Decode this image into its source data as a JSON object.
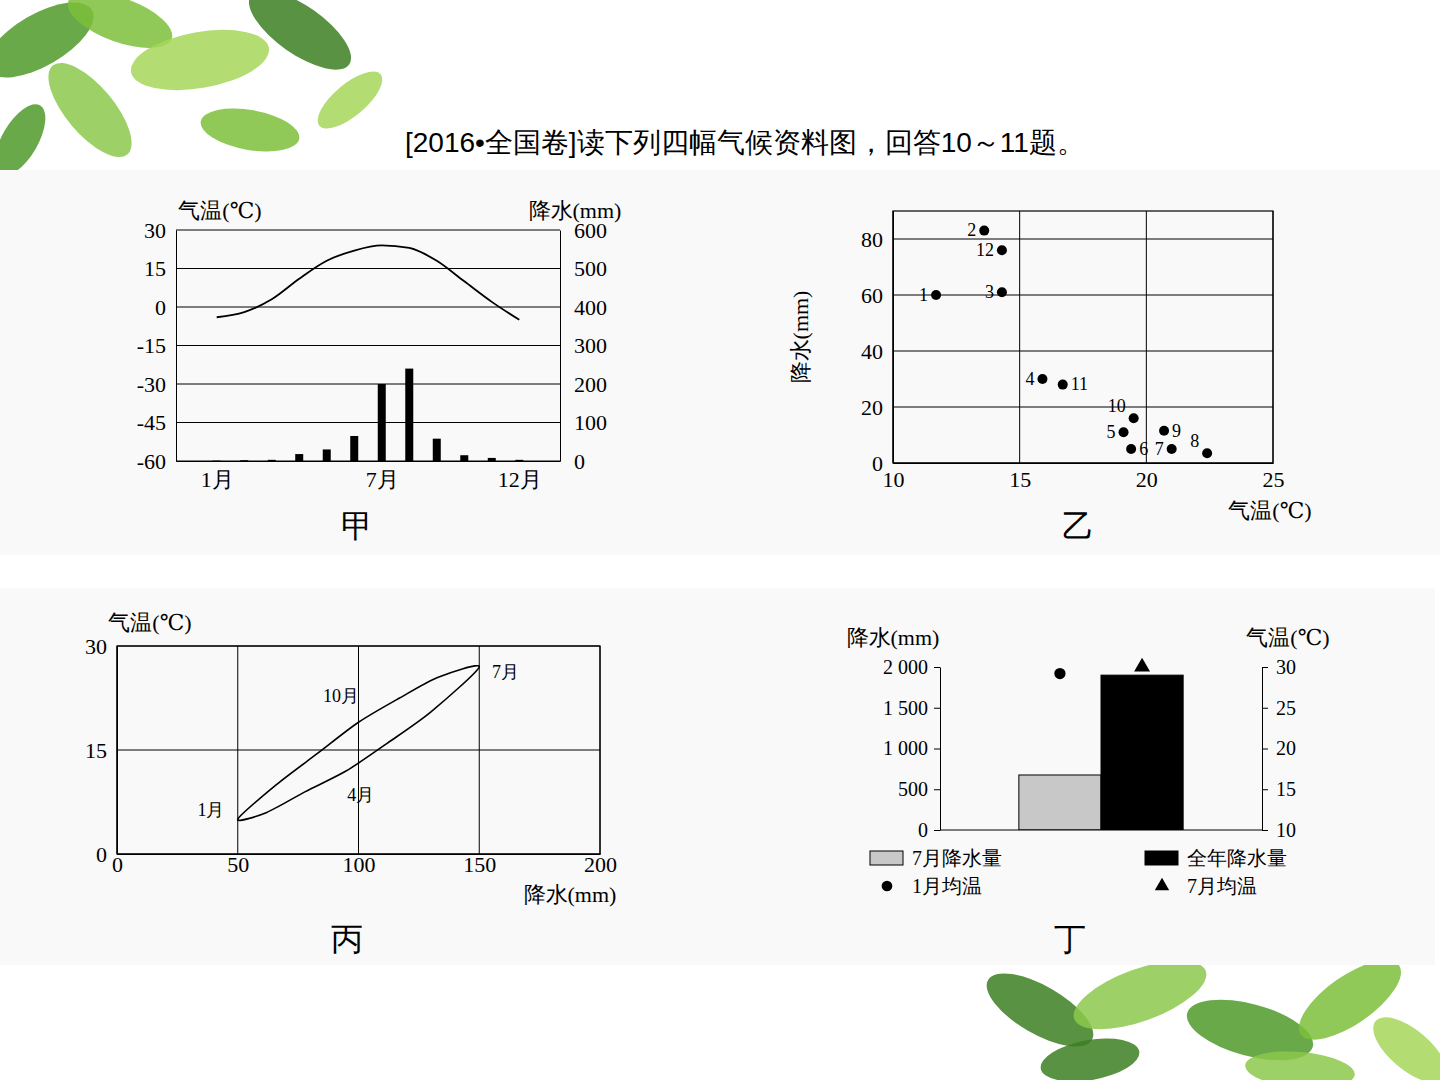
{
  "header": {
    "title": "[2016•全国卷]读下列四幅气候资料图，回答10～11题。"
  },
  "chart_data": [
    {
      "type": "bar_line",
      "caption": "甲",
      "categories": [
        "1月",
        null,
        null,
        null,
        null,
        null,
        "7月",
        null,
        null,
        null,
        null,
        "12月"
      ],
      "ylabel": "气温(℃)",
      "y2label": "降水(mm)",
      "ylim": [
        -60,
        30
      ],
      "yticks": [
        -60,
        -45,
        -30,
        -15,
        0,
        15,
        30
      ],
      "y2lim": [
        0,
        600
      ],
      "y2ticks": [
        0,
        100,
        200,
        300,
        400,
        500,
        600
      ],
      "grid": true,
      "series": [
        {
          "type": "line",
          "color": "#000000",
          "values": [
            -4,
            -2,
            3,
            11,
            18,
            22,
            24,
            23,
            18,
            10,
            2,
            -5
          ]
        },
        {
          "type": "bar",
          "axis": "y2",
          "color": "#000000",
          "values": [
            1,
            2,
            3,
            18,
            30,
            65,
            200,
            240,
            58,
            15,
            8,
            3
          ]
        }
      ]
    },
    {
      "type": "scatter",
      "caption": "乙",
      "x": [
        11.7,
        13.6,
        14.3,
        15.9,
        19.1,
        19.4,
        21.0,
        22.4,
        20.7,
        19.5,
        16.7,
        14.3
      ],
      "values": [
        60,
        83,
        61,
        30,
        11,
        5,
        5,
        3.5,
        11.5,
        16,
        28,
        76
      ],
      "labels": [
        "1",
        "2",
        "3",
        "4",
        "5",
        "6",
        "7",
        "8",
        "9",
        "10",
        "11",
        "12"
      ],
      "xlabel": "气温(℃)",
      "ylabel": "降水(mm)",
      "xlim": [
        10,
        25
      ],
      "xticks": [
        10,
        15,
        20,
        25
      ],
      "ylim": [
        0,
        90
      ],
      "yticks": [
        0,
        20,
        40,
        60,
        80
      ],
      "grid": true,
      "color": "#000000",
      "marker": "circle"
    },
    {
      "type": "loop",
      "caption": "丙",
      "x": [
        50,
        62,
        78,
        95,
        112,
        130,
        150,
        133,
        117,
        100,
        83,
        66
      ],
      "values": [
        5,
        6,
        9,
        12,
        16,
        20.5,
        27,
        25.5,
        22.5,
        19,
        14.5,
        10
      ],
      "labels": [
        "1月",
        null,
        null,
        "4月",
        null,
        null,
        "7月",
        null,
        null,
        "10月",
        null,
        null
      ],
      "xlabel": "降水(mm)",
      "ylabel": "气温(℃)",
      "xlim": [
        0,
        200
      ],
      "xticks": [
        0,
        50,
        100,
        150,
        200
      ],
      "ylim": [
        0,
        30
      ],
      "yticks": [
        0,
        15,
        30
      ],
      "grid": true,
      "color": "#000000",
      "line_style": "solid"
    },
    {
      "type": "bar",
      "caption": "丁",
      "ylabel": "降水(mm)",
      "y2label": "气温(℃)",
      "ylim": [
        0,
        2000
      ],
      "yticks": [
        0,
        500,
        {
          "value": 1000,
          "label": "1 000"
        },
        {
          "value": 1500,
          "label": "1 500"
        },
        {
          "value": 2000,
          "label": "2 000"
        }
      ],
      "y2lim": [
        10,
        30
      ],
      "y2ticks": [
        10,
        15,
        20,
        25,
        30
      ],
      "legend": "bottom",
      "series": [
        {
          "name": "7月降水量",
          "type": "bar",
          "color": "#c8c8c8",
          "values": [
            675
          ]
        },
        {
          "name": "全年降水量",
          "type": "bar",
          "color": "#000000",
          "values": [
            1900
          ]
        },
        {
          "name": "1月均温",
          "type": "scatter",
          "axis": "y2",
          "marker": "circle",
          "color": "#000000",
          "values": [
            29.2
          ]
        },
        {
          "name": "7月均温",
          "type": "scatter",
          "axis": "y2",
          "marker": "triangle",
          "color": "#000000",
          "values": [
            30
          ]
        }
      ]
    }
  ]
}
